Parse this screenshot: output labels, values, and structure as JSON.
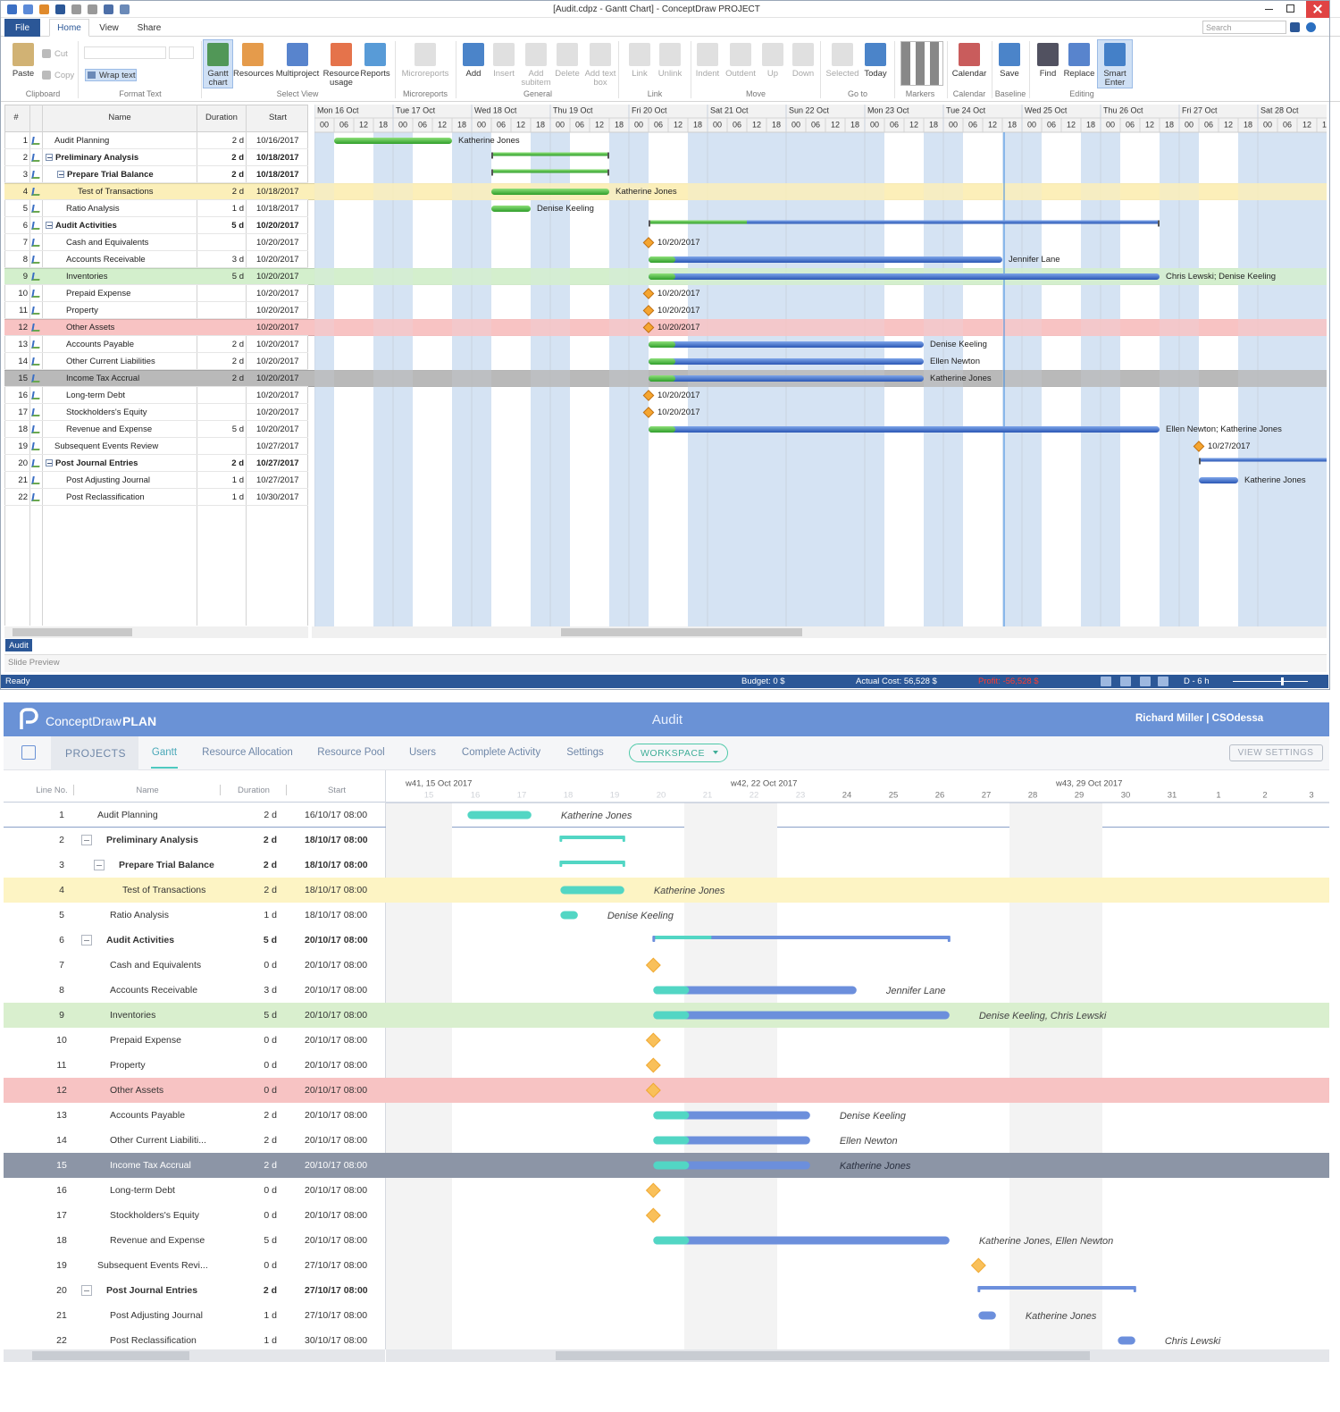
{
  "project_window": {
    "title": "[Audit.cdpz - Gantt Chart] - ConceptDraw PROJECT",
    "menu_tabs": [
      "File",
      "Home",
      "View",
      "Share"
    ],
    "search_placeholder": "Search",
    "ribbon_buttons": [
      "Paste",
      "Cut",
      "Copy",
      "Wrap text",
      "Gantt chart",
      "Resources",
      "Multiproject",
      "Resource usage",
      "Reports",
      "Microreports",
      "Add",
      "Insert",
      "Add subitem",
      "Delete",
      "Add text box",
      "Link",
      "Unlink",
      "Indent",
      "Outdent",
      "Up",
      "Down",
      "Selected",
      "Today",
      "Calendar",
      "Save",
      "Find",
      "Replace",
      "Smart Enter"
    ],
    "ribbon_groups": [
      "Clipboard",
      "Format Text",
      "Select View",
      "Microreports",
      "General",
      "Link",
      "Move",
      "Go to",
      "Markers",
      "Calendar",
      "Baseline",
      "Editing"
    ],
    "columns": [
      "#",
      "Name",
      "Duration",
      "Start"
    ],
    "days": [
      "Mon 16 Oct",
      "Tue 17 Oct",
      "Wed 18 Oct",
      "Thu 19 Oct",
      "Fri 20 Oct",
      "Sat 21 Oct",
      "Sun 22 Oct",
      "Mon 23 Oct",
      "Tue 24 Oct",
      "Wed 25 Oct",
      "Thu 26 Oct",
      "Fri 27 Oct",
      "Sat 28 Oct"
    ],
    "hours": [
      "00",
      "06",
      "12",
      "18"
    ],
    "tasks": [
      {
        "id": 1,
        "name": "Audit Planning",
        "duration": "2 d",
        "start": "10/16/2017",
        "level": 0,
        "resources": "Katherine Jones"
      },
      {
        "id": 2,
        "name": "Preliminary Analysis",
        "duration": "2 d",
        "start": "10/18/2017",
        "level": 0,
        "summary": true
      },
      {
        "id": 3,
        "name": "Prepare Trial Balance",
        "duration": "2 d",
        "start": "10/18/2017",
        "level": 1,
        "summary": true
      },
      {
        "id": 4,
        "name": "Test of Transactions",
        "duration": "2 d",
        "start": "10/18/2017",
        "level": 2,
        "resources": "Katherine Jones",
        "highlight": "#fbefb9"
      },
      {
        "id": 5,
        "name": "Ratio Analysis",
        "duration": "1 d",
        "start": "10/18/2017",
        "level": 1,
        "resources": "Denise Keeling"
      },
      {
        "id": 6,
        "name": "Audit Activities",
        "duration": "5 d",
        "start": "10/20/2017",
        "level": 0,
        "summary": true
      },
      {
        "id": 7,
        "name": "Cash and Equivalents",
        "duration": null,
        "start": "10/20/2017",
        "level": 1
      },
      {
        "id": 8,
        "name": "Accounts Receivable",
        "duration": "3 d",
        "start": "10/20/2017",
        "level": 1,
        "resources": "Jennifer Lane"
      },
      {
        "id": 9,
        "name": "Inventories",
        "duration": "5 d",
        "start": "10/20/2017",
        "level": 1,
        "resources": "Chris Lewski; Denise Keeling",
        "highlight": "#d3efcc"
      },
      {
        "id": 10,
        "name": "Prepaid Expense",
        "duration": null,
        "start": "10/20/2017",
        "level": 1
      },
      {
        "id": 11,
        "name": "Property",
        "duration": null,
        "start": "10/20/2017",
        "level": 1
      },
      {
        "id": 12,
        "name": "Other Assets",
        "duration": null,
        "start": "10/20/2017",
        "level": 1,
        "highlight": "#f8c3c3"
      },
      {
        "id": 13,
        "name": "Accounts Payable",
        "duration": "2 d",
        "start": "10/20/2017",
        "level": 1,
        "resources": "Denise Keeling"
      },
      {
        "id": 14,
        "name": "Other Current Liabilities",
        "duration": "2 d",
        "start": "10/20/2017",
        "level": 1,
        "resources": "Ellen Newton"
      },
      {
        "id": 15,
        "name": "Income Tax  Accrual",
        "duration": "2 d",
        "start": "10/20/2017",
        "level": 1,
        "resources": "Katherine Jones",
        "highlight": "#b9b9b9"
      },
      {
        "id": 16,
        "name": "Long-term Debt",
        "duration": null,
        "start": "10/20/2017",
        "level": 1
      },
      {
        "id": 17,
        "name": "Stockholders's Equity",
        "duration": null,
        "start": "10/20/2017",
        "level": 1
      },
      {
        "id": 18,
        "name": "Revenue and Expense",
        "duration": "5 d",
        "start": "10/20/2017",
        "level": 1,
        "resources": "Ellen Newton; Katherine Jones"
      },
      {
        "id": 19,
        "name": "Subsequent Events Review",
        "duration": null,
        "start": "10/27/2017",
        "level": 0
      },
      {
        "id": 20,
        "name": "Post Journal Entries",
        "duration": "2 d",
        "start": "10/27/2017",
        "level": 0,
        "summary": true
      },
      {
        "id": 21,
        "name": "Post Adjusting Journal",
        "duration": "1 d",
        "start": "10/27/2017",
        "level": 1,
        "resources": "Katherine Jones"
      },
      {
        "id": 22,
        "name": "Post Reclassification",
        "duration": "1 d",
        "start": "10/30/2017",
        "level": 1
      }
    ],
    "sheet_tab": "Audit",
    "slide_preview": "Slide Preview",
    "status": {
      "state": "Ready",
      "budget": "Budget: 0 $",
      "actual_cost": "Actual Cost: 56,528 $",
      "profit": "Profit: -56,528 $",
      "zoom": "D - 6 h"
    }
  },
  "plan_window": {
    "app_name": "ConceptDraw",
    "app_edition": "PLAN",
    "project_title": "Audit",
    "user": "Richard Miller | CSOdessa",
    "nav": [
      "PROJECTS",
      "Gantt",
      "Resource Allocation",
      "Resource Pool",
      "Users",
      "Complete Activity",
      "Settings"
    ],
    "workspace_button": "WORKSPACE",
    "view_settings_button": "VIEW SETTINGS",
    "columns": [
      "Line No.",
      "Name",
      "Duration",
      "Start"
    ],
    "weeks": [
      "w41, 15 Oct 2017",
      "w42, 22 Oct 2017",
      "w43, 29 Oct 2017"
    ],
    "day_numbers": [
      15,
      16,
      17,
      18,
      19,
      20,
      21,
      22,
      23,
      24,
      25,
      26,
      27,
      28,
      29,
      30,
      31,
      1,
      2,
      3
    ],
    "tasks": [
      {
        "id": 1,
        "name": "Audit Planning",
        "duration": "2 d",
        "start": "16/10/17 08:00",
        "level": 0,
        "resources": "Katherine Jones"
      },
      {
        "id": 2,
        "name": "Preliminary Analysis",
        "duration": "2 d",
        "start": "18/10/17 08:00",
        "level": 0,
        "summary": true
      },
      {
        "id": 3,
        "name": "Prepare Trial Balance",
        "duration": "2 d",
        "start": "18/10/17 08:00",
        "level": 1,
        "summary": true
      },
      {
        "id": 4,
        "name": "Test of Transactions",
        "duration": "2 d",
        "start": "18/10/17 08:00",
        "level": 2,
        "resources": "Katherine Jones",
        "highlight": "#fdf4c4"
      },
      {
        "id": 5,
        "name": "Ratio Analysis",
        "duration": "1 d",
        "start": "18/10/17 08:00",
        "level": 1,
        "resources": "Denise Keeling"
      },
      {
        "id": 6,
        "name": "Audit Activities",
        "duration": "5 d",
        "start": "20/10/17 08:00",
        "level": 0,
        "summary": true
      },
      {
        "id": 7,
        "name": "Cash and Equivalents",
        "duration": "0 d",
        "start": "20/10/17 08:00",
        "level": 1
      },
      {
        "id": 8,
        "name": "Accounts Receivable",
        "duration": "3 d",
        "start": "20/10/17 08:00",
        "level": 1,
        "resources": "Jennifer Lane"
      },
      {
        "id": 9,
        "name": "Inventories",
        "duration": "5 d",
        "start": "20/10/17 08:00",
        "level": 1,
        "resources": "Denise Keeling, Chris Lewski",
        "highlight": "#d9efce"
      },
      {
        "id": 10,
        "name": "Prepaid Expense",
        "duration": "0 d",
        "start": "20/10/17 08:00",
        "level": 1
      },
      {
        "id": 11,
        "name": "Property",
        "duration": "0 d",
        "start": "20/10/17 08:00",
        "level": 1
      },
      {
        "id": 12,
        "name": "Other Assets",
        "duration": "0 d",
        "start": "20/10/17 08:00",
        "level": 1,
        "highlight": "#f7c3c3"
      },
      {
        "id": 13,
        "name": "Accounts Payable",
        "duration": "2 d",
        "start": "20/10/17 08:00",
        "level": 1,
        "resources": "Denise Keeling"
      },
      {
        "id": 14,
        "name": "Other Current Liabiliti...",
        "duration": "2 d",
        "start": "20/10/17 08:00",
        "level": 1,
        "resources": "Ellen Newton"
      },
      {
        "id": 15,
        "name": "Income Tax Accrual",
        "duration": "2 d",
        "start": "20/10/17 08:00",
        "level": 1,
        "resources": "Katherine Jones",
        "highlight": "#8c95a6"
      },
      {
        "id": 16,
        "name": "Long-term Debt",
        "duration": "0 d",
        "start": "20/10/17 08:00",
        "level": 1
      },
      {
        "id": 17,
        "name": "Stockholders's Equity",
        "duration": "0 d",
        "start": "20/10/17 08:00",
        "level": 1
      },
      {
        "id": 18,
        "name": "Revenue and Expense",
        "duration": "5 d",
        "start": "20/10/17 08:00",
        "level": 1,
        "resources": "Katherine Jones, Ellen Newton"
      },
      {
        "id": 19,
        "name": "Subsequent Events Revi...",
        "duration": "0 d",
        "start": "27/10/17 08:00",
        "level": 0
      },
      {
        "id": 20,
        "name": "Post Journal Entries",
        "duration": "2 d",
        "start": "27/10/17 08:00",
        "level": 0,
        "summary": true
      },
      {
        "id": 21,
        "name": "Post Adjusting Journal",
        "duration": "1 d",
        "start": "27/10/17 08:00",
        "level": 1,
        "resources": "Katherine Jones"
      },
      {
        "id": 22,
        "name": "Post Reclassification",
        "duration": "1 d",
        "start": "30/10/17 08:00",
        "level": 1,
        "resources": "Chris Lewski"
      }
    ]
  }
}
